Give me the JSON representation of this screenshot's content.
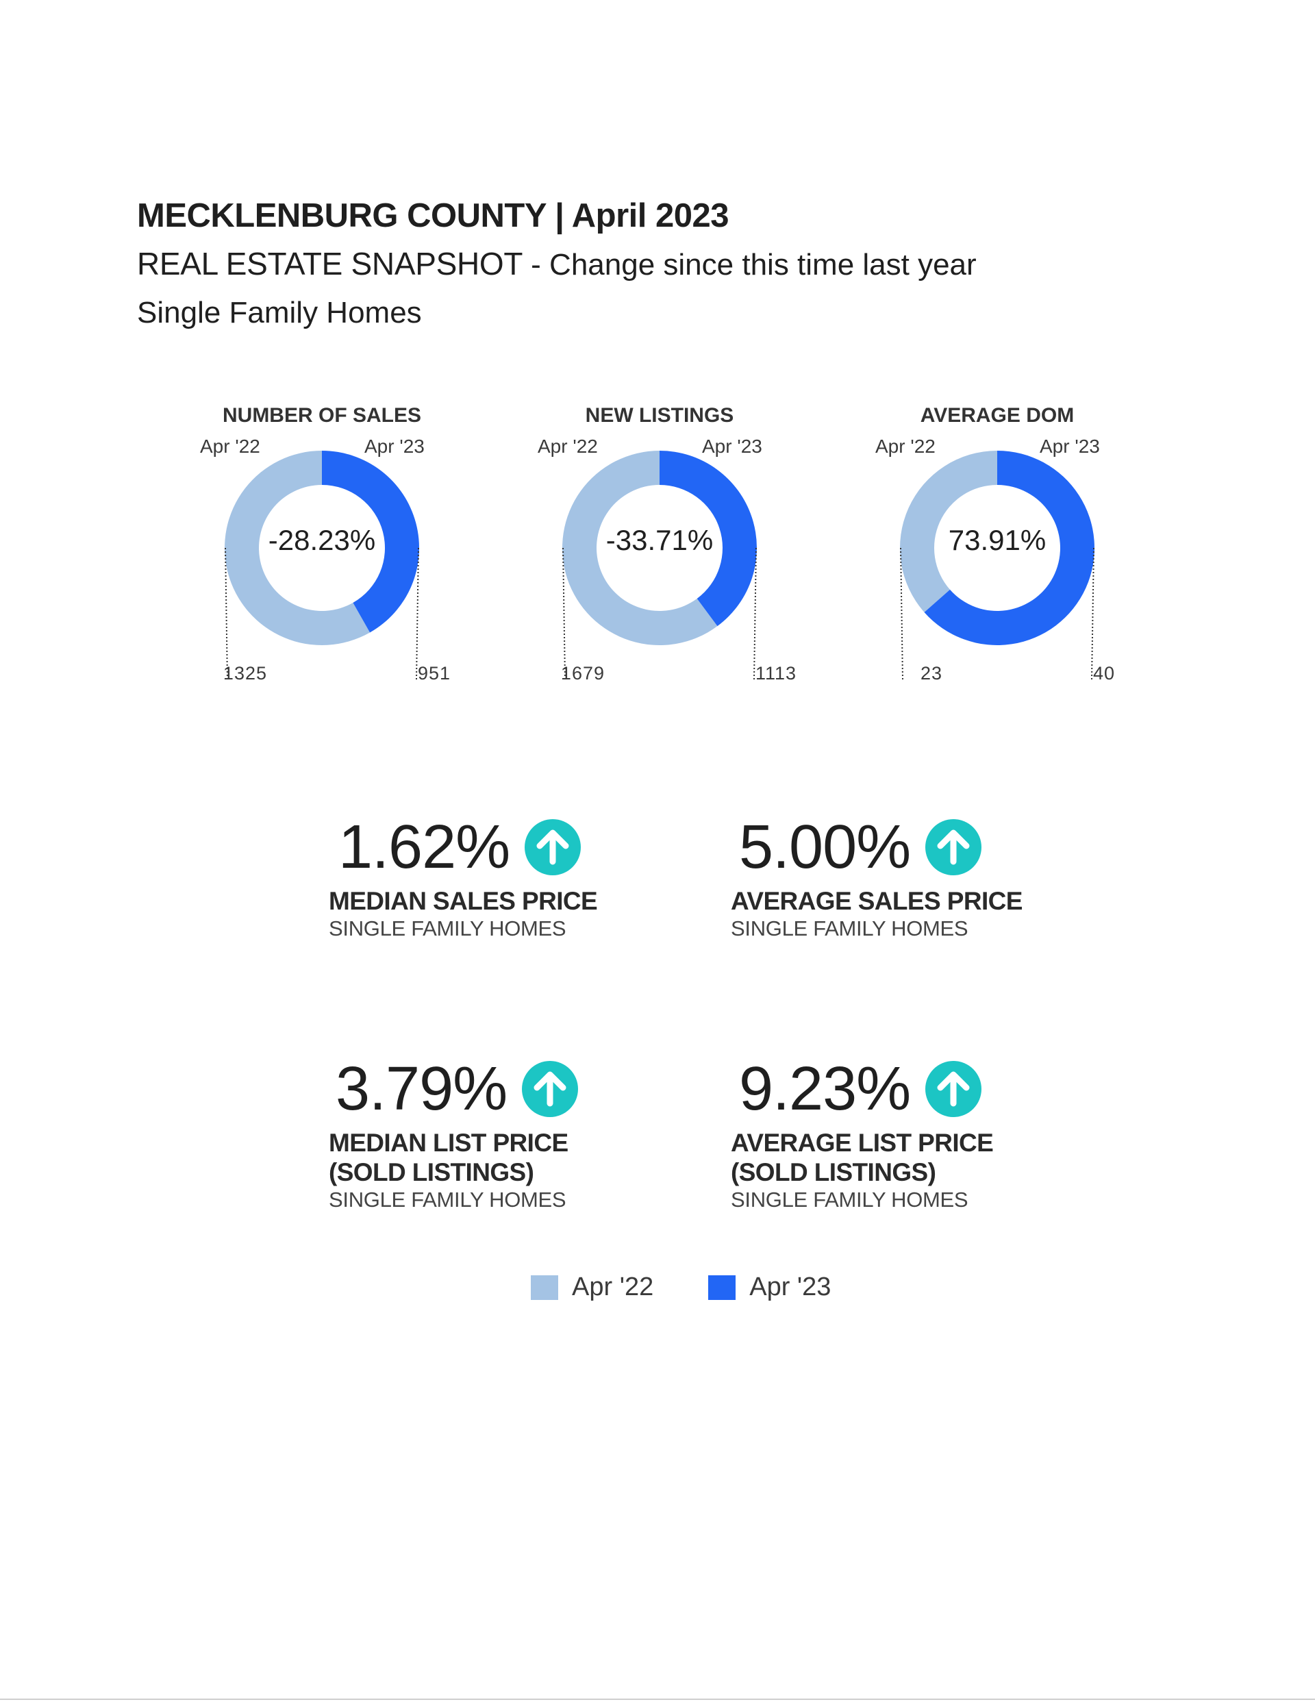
{
  "header": {
    "title": "MECKLENBURG COUNTY | April 2023",
    "subtitle_main": "REAL ESTATE SNAPSHOT",
    "subtitle_rest": "- Change since this time last year",
    "segment": "Single Family Homes"
  },
  "colors": {
    "prior": "#a4c3e4",
    "current": "#2266f5",
    "icon": "#1cc5c4"
  },
  "chart_data": [
    {
      "type": "pie",
      "title": "NUMBER OF SALES",
      "categories": [
        "Apr '22",
        "Apr '23"
      ],
      "values": [
        1325,
        951
      ],
      "value_labels": [
        "1325",
        "951"
      ],
      "center_label": "-28.23%"
    },
    {
      "type": "pie",
      "title": "NEW LISTINGS",
      "categories": [
        "Apr '22",
        "Apr '23"
      ],
      "values": [
        1679,
        1113
      ],
      "value_labels": [
        "1679",
        "1113"
      ],
      "center_label": "-33.71%"
    },
    {
      "type": "pie",
      "title": "AVERAGE DOM",
      "categories": [
        "Apr '22",
        "Apr '23"
      ],
      "values": [
        23,
        40
      ],
      "value_labels": [
        "23",
        "40"
      ],
      "center_label": "73.91%"
    }
  ],
  "kpis": [
    {
      "value": "1.62%",
      "label": "MEDIAN SALES PRICE",
      "label2": "",
      "sub": "SINGLE FAMILY HOMES",
      "icon": "arrow-up-circle-icon"
    },
    {
      "value": "5.00%",
      "label": "AVERAGE SALES PRICE",
      "label2": "",
      "sub": "SINGLE FAMILY HOMES",
      "icon": "arrow-up-circle-icon"
    },
    {
      "value": "3.79%",
      "label": "MEDIAN LIST PRICE",
      "label2": "(SOLD LISTINGS)",
      "sub": "SINGLE FAMILY HOMES",
      "icon": "arrow-up-circle-icon"
    },
    {
      "value": "9.23%",
      "label": "AVERAGE LIST PRICE",
      "label2": "(SOLD LISTINGS)",
      "sub": "SINGLE FAMILY HOMES",
      "icon": "arrow-up-circle-icon"
    }
  ],
  "legend": [
    {
      "label": "Apr '22"
    },
    {
      "label": "Apr '23"
    }
  ]
}
